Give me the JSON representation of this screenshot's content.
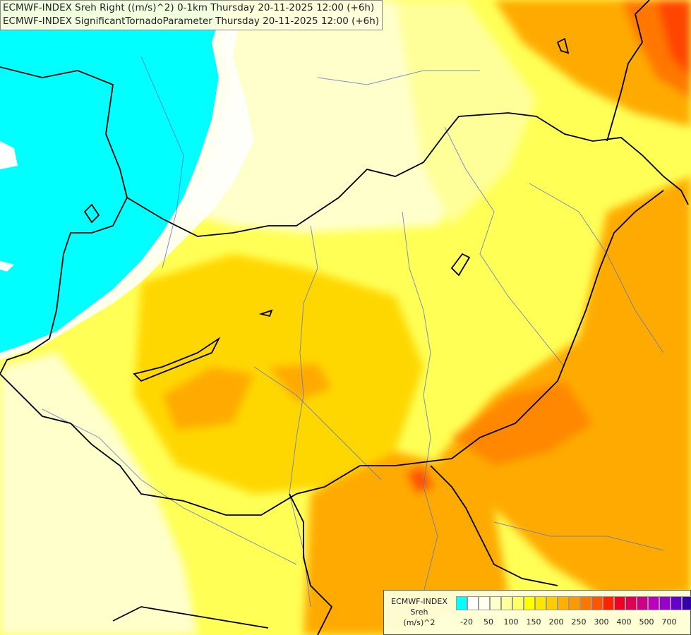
{
  "title": {
    "line1": "ECMWF-INDEX Sreh Right ((m/s)^2) 0-1km Thursday 20-11-2025 12:00 (+6h)",
    "line2": "ECMWF-INDEX SignificantTornadoParameter Thursday 20-11-2025 12:00 (+6h)"
  },
  "legend": {
    "line1": "ECMWF-INDEX",
    "line2": "Sreh",
    "line3": "(m/s)^2",
    "colors": [
      "#00ffff",
      "#ffffff",
      "#ffffee",
      "#ffffcc",
      "#ffff99",
      "#ffff66",
      "#ffff00",
      "#ffe600",
      "#ffcc00",
      "#ffb000",
      "#ff9900",
      "#ff7700",
      "#ff5500",
      "#ff2200",
      "#ee0022",
      "#dd0055",
      "#cc0088",
      "#bb00bb",
      "#9900cc",
      "#6600cc",
      "#3300aa",
      "#000088"
    ],
    "ticks": [
      "-20",
      "50",
      "100",
      "150",
      "200",
      "250",
      "300",
      "400",
      "500",
      "700"
    ]
  },
  "map": {
    "colors": {
      "cyan": "#00ffff",
      "pale": "#ffffcc",
      "light_yellow": "#ffff99",
      "yellow": "#ffff33",
      "gold": "#ffd700",
      "orange_light": "#ffb400",
      "orange": "#ff8c00",
      "red_orange": "#ff5a00",
      "border": "#000000",
      "river": "#5a78c8"
    }
  }
}
